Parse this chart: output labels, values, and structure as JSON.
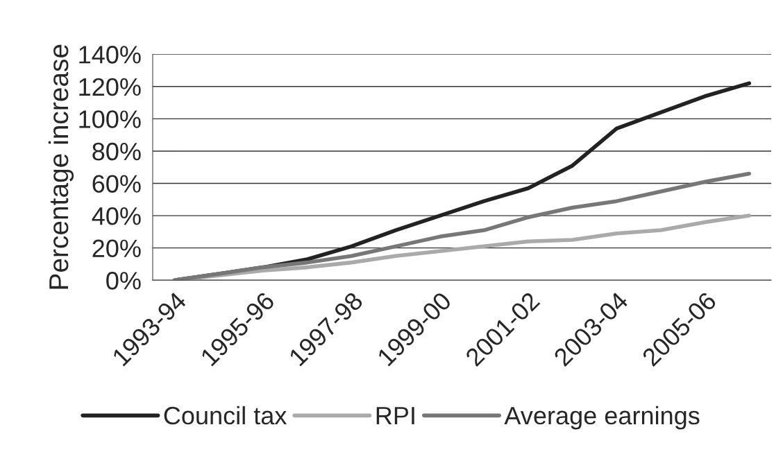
{
  "chart_data": {
    "type": "line",
    "ylabel": "Percentage increase",
    "categories": [
      "1993-94",
      null,
      "1995-96",
      null,
      "1997-98",
      null,
      "1999-00",
      null,
      "2001-02",
      null,
      "2003-04",
      null,
      "2005-06",
      null
    ],
    "series": [
      {
        "name": "Council tax",
        "color": "#222222",
        "values": [
          0,
          4,
          8,
          13,
          21,
          31,
          40,
          49,
          57,
          71,
          94,
          104,
          114,
          122
        ]
      },
      {
        "name": "RPI",
        "color": "#aaaaaa",
        "values": [
          0,
          3,
          6,
          8,
          11,
          15,
          18,
          21,
          24,
          25,
          29,
          31,
          36,
          40
        ]
      },
      {
        "name": "Average earnings",
        "color": "#777777",
        "values": [
          0,
          4,
          8,
          11,
          15,
          21,
          27,
          31,
          39,
          45,
          49,
          55,
          61,
          66
        ]
      }
    ],
    "ylim": [
      0,
      140
    ],
    "yticks": [
      {
        "value": 0,
        "label": "0%"
      },
      {
        "value": 20,
        "label": "20%"
      },
      {
        "value": 40,
        "label": "40%"
      },
      {
        "value": 60,
        "label": "60%"
      },
      {
        "value": 80,
        "label": "80%"
      },
      {
        "value": 100,
        "label": "100%"
      },
      {
        "value": 120,
        "label": "120%"
      },
      {
        "value": 140,
        "label": "140%"
      }
    ],
    "grid": "y",
    "legend": "bottom",
    "marker": "none",
    "line_style": "solid"
  }
}
